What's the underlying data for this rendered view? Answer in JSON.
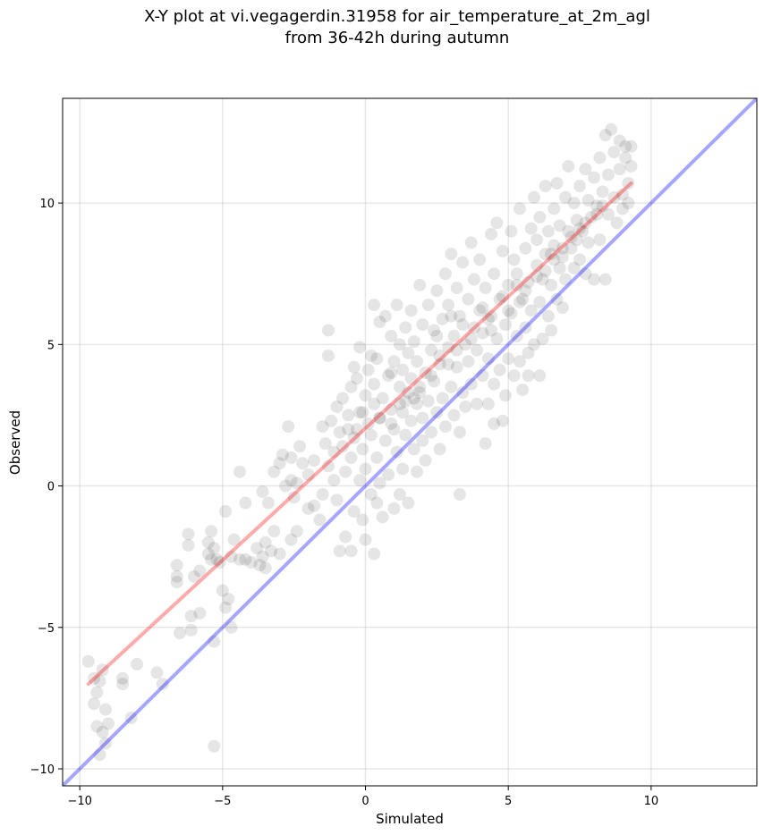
{
  "chart_data": {
    "type": "scatter",
    "title": "X-Y plot at vi.vegagerdin.31958 for air_temperature_at_2m_agl",
    "subtitle": "from 36-42h during autumn",
    "xlabel": "Simulated",
    "ylabel": "Observed",
    "xlim": [
      -10.6,
      13.7
    ],
    "ylim": [
      -10.6,
      13.7
    ],
    "x_ticks": [
      -10,
      -5,
      0,
      5,
      10
    ],
    "y_ticks": [
      -10,
      -5,
      0,
      5,
      10
    ],
    "x_tick_labels": [
      "−10",
      "−5",
      "0",
      "5",
      "10"
    ],
    "y_tick_labels": [
      "−10",
      "−5",
      "0",
      "5",
      "10"
    ],
    "grid": true,
    "point_color": "#000000",
    "point_alpha": 0.1,
    "identity_line": {
      "color": "#0000ff",
      "x": [
        -10.6,
        13.7
      ],
      "y": [
        -10.6,
        13.7
      ]
    },
    "regression_line": {
      "color": "#ff0000",
      "x": [
        -9.7,
        9.3
      ],
      "y": [
        -7.0,
        10.7
      ]
    },
    "points": [
      [
        -9.7,
        -6.2
      ],
      [
        -9.5,
        -6.8
      ],
      [
        -9.4,
        -7.3
      ],
      [
        -9.5,
        -7.7
      ],
      [
        -9.3,
        -6.9
      ],
      [
        -9.1,
        -7.9
      ],
      [
        -9.4,
        -8.5
      ],
      [
        -9.2,
        -8.7
      ],
      [
        -9.0,
        -8.4
      ],
      [
        -9.1,
        -9.1
      ],
      [
        -9.3,
        -9.5
      ],
      [
        -9.2,
        -6.5
      ],
      [
        -8.5,
        -6.8
      ],
      [
        -8.5,
        -7.0
      ],
      [
        -8.2,
        -8.2
      ],
      [
        -8.0,
        -6.3
      ],
      [
        -7.3,
        -6.6
      ],
      [
        -7.1,
        -7.0
      ],
      [
        -5.3,
        -9.2
      ],
      [
        -6.6,
        -2.8
      ],
      [
        -6.6,
        -3.2
      ],
      [
        -6.6,
        -3.4
      ],
      [
        -6.2,
        -1.7
      ],
      [
        -6.2,
        -2.1
      ],
      [
        -6.5,
        -5.2
      ],
      [
        -6.1,
        -5.1
      ],
      [
        -6.1,
        -4.6
      ],
      [
        -5.8,
        -4.5
      ],
      [
        -6.0,
        -3.2
      ],
      [
        -5.8,
        -3.0
      ],
      [
        -5.5,
        -2.0
      ],
      [
        -5.4,
        -1.6
      ],
      [
        -5.3,
        -2.2
      ],
      [
        -5.5,
        -2.4
      ],
      [
        -5.2,
        -2.6
      ],
      [
        -5.4,
        -2.6
      ],
      [
        -5.1,
        -2.7
      ],
      [
        -5.0,
        -3.7
      ],
      [
        -4.9,
        -4.3
      ],
      [
        -4.8,
        -4.0
      ],
      [
        -4.7,
        -2.5
      ],
      [
        -4.6,
        -1.9
      ],
      [
        -5.3,
        -5.5
      ],
      [
        -4.7,
        -5.0
      ],
      [
        -4.9,
        -0.9
      ],
      [
        -4.4,
        -2.6
      ],
      [
        -4.2,
        -2.6
      ],
      [
        -4.4,
        0.5
      ],
      [
        -4.2,
        -0.6
      ],
      [
        -4.0,
        -2.7
      ],
      [
        -3.8,
        -2.2
      ],
      [
        -3.7,
        -2.8
      ],
      [
        -3.6,
        -2.5
      ],
      [
        -3.5,
        -2.0
      ],
      [
        -3.5,
        -2.9
      ],
      [
        -3.3,
        -2.3
      ],
      [
        -3.2,
        -1.6
      ],
      [
        -3.0,
        -2.4
      ],
      [
        -3.6,
        -0.2
      ],
      [
        -3.4,
        -0.6
      ],
      [
        -3.2,
        0.5
      ],
      [
        -3.0,
        0.8
      ],
      [
        -2.9,
        1.1
      ],
      [
        -2.8,
        0.0
      ],
      [
        -2.6,
        0.2
      ],
      [
        -2.6,
        1.0
      ],
      [
        -2.5,
        -0.4
      ],
      [
        -2.4,
        0.1
      ],
      [
        -2.3,
        1.4
      ],
      [
        -2.2,
        0.8
      ],
      [
        -2.7,
        2.1
      ],
      [
        -2.6,
        -1.9
      ],
      [
        -2.4,
        -1.6
      ],
      [
        -2.0,
        -0.8
      ],
      [
        -1.8,
        -0.7
      ],
      [
        -2.0,
        0.4
      ],
      [
        -1.8,
        0.9
      ],
      [
        -1.6,
        -1.2
      ],
      [
        -1.5,
        -0.3
      ],
      [
        -1.5,
        2.1
      ],
      [
        -1.4,
        1.5
      ],
      [
        -1.3,
        0.7
      ],
      [
        -1.2,
        2.3
      ],
      [
        -1.1,
        1.2
      ],
      [
        -1.1,
        0.2
      ],
      [
        -1.0,
        -0.5
      ],
      [
        -1.0,
        2.8
      ],
      [
        -0.9,
        1.9
      ],
      [
        -0.9,
        -2.3
      ],
      [
        -0.8,
        3.1
      ],
      [
        -0.8,
        1.4
      ],
      [
        -0.7,
        -1.8
      ],
      [
        -0.7,
        0.5
      ],
      [
        -0.6,
        2.5
      ],
      [
        -0.5,
        -2.3
      ],
      [
        -0.5,
        3.5
      ],
      [
        -0.5,
        1.0
      ],
      [
        -0.4,
        -0.9
      ],
      [
        -0.4,
        1.7
      ],
      [
        -0.3,
        2.0
      ],
      [
        -0.3,
        3.8
      ],
      [
        -0.2,
        0.2
      ],
      [
        -0.2,
        4.9
      ],
      [
        -0.2,
        2.6
      ],
      [
        -0.1,
        -1.2
      ],
      [
        -0.1,
        1.3
      ],
      [
        0.0,
        3.2
      ],
      [
        0.0,
        -1.9
      ],
      [
        0.0,
        0.6
      ],
      [
        0.1,
        2.2
      ],
      [
        0.1,
        4.1
      ],
      [
        0.2,
        1.8
      ],
      [
        0.2,
        -0.3
      ],
      [
        0.3,
        3.6
      ],
      [
        0.3,
        6.4
      ],
      [
        0.3,
        2.9
      ],
      [
        0.4,
        1.0
      ],
      [
        0.4,
        -0.6
      ],
      [
        0.4,
        4.5
      ],
      [
        0.5,
        2.4
      ],
      [
        0.5,
        5.8
      ],
      [
        0.5,
        0.1
      ],
      [
        -1.3,
        5.5
      ],
      [
        -1.3,
        4.6
      ],
      [
        -0.4,
        4.2
      ],
      [
        0.3,
        -2.4
      ],
      [
        0.2,
        4.6
      ],
      [
        0.6,
        3.1
      ],
      [
        0.6,
        -1.1
      ],
      [
        0.7,
        1.6
      ],
      [
        0.7,
        6.0
      ],
      [
        0.8,
        3.9
      ],
      [
        0.8,
        0.4
      ],
      [
        0.9,
        2.7
      ],
      [
        0.9,
        5.3
      ],
      [
        1.0,
        -0.8
      ],
      [
        1.0,
        4.4
      ],
      [
        1.0,
        2.0
      ],
      [
        1.1,
        6.4
      ],
      [
        1.1,
        1.2
      ],
      [
        1.2,
        3.5
      ],
      [
        1.2,
        5.0
      ],
      [
        1.2,
        -0.3
      ],
      [
        1.3,
        2.6
      ],
      [
        1.3,
        4.1
      ],
      [
        1.3,
        0.6
      ],
      [
        1.4,
        5.6
      ],
      [
        1.4,
        3.0
      ],
      [
        1.4,
        1.8
      ],
      [
        1.5,
        4.7
      ],
      [
        1.5,
        -0.6
      ],
      [
        1.6,
        2.3
      ],
      [
        1.6,
        6.2
      ],
      [
        1.6,
        3.8
      ],
      [
        1.7,
        1.3
      ],
      [
        1.7,
        5.1
      ],
      [
        1.8,
        2.9
      ],
      [
        1.8,
        0.5
      ],
      [
        1.8,
        4.4
      ],
      [
        1.9,
        7.1
      ],
      [
        1.9,
        3.3
      ],
      [
        2.0,
        1.6
      ],
      [
        2.0,
        5.7
      ],
      [
        2.0,
        2.4
      ],
      [
        2.1,
        4.0
      ],
      [
        2.1,
        0.9
      ],
      [
        2.2,
        6.4
      ],
      [
        2.2,
        3.0
      ],
      [
        2.3,
        4.8
      ],
      [
        2.3,
        1.9
      ],
      [
        2.4,
        5.5
      ],
      [
        2.4,
        3.7
      ],
      [
        2.5,
        2.6
      ],
      [
        2.5,
        6.9
      ],
      [
        2.6,
        4.3
      ],
      [
        2.6,
        1.3
      ],
      [
        2.7,
        5.9
      ],
      [
        2.7,
        3.1
      ],
      [
        2.8,
        7.5
      ],
      [
        2.8,
        2.1
      ],
      [
        2.9,
        4.9
      ],
      [
        2.9,
        6.4
      ],
      [
        3.0,
        3.5
      ],
      [
        3.0,
        8.2
      ],
      [
        3.1,
        2.5
      ],
      [
        3.1,
        5.3
      ],
      [
        3.2,
        7.0
      ],
      [
        3.2,
        4.2
      ],
      [
        3.3,
        1.9
      ],
      [
        3.3,
        6.0
      ],
      [
        3.4,
        3.3
      ],
      [
        3.4,
        7.9
      ],
      [
        3.5,
        5.0
      ],
      [
        3.5,
        2.8
      ],
      [
        3.6,
        6.6
      ],
      [
        3.6,
        4.4
      ],
      [
        3.7,
        8.6
      ],
      [
        3.7,
        3.6
      ],
      [
        3.8,
        5.6
      ],
      [
        3.8,
        7.3
      ],
      [
        3.9,
        2.9
      ],
      [
        3.9,
        4.8
      ],
      [
        4.0,
        6.2
      ],
      [
        4.0,
        8.0
      ],
      [
        4.1,
        3.9
      ],
      [
        4.1,
        5.4
      ],
      [
        4.2,
        1.5
      ],
      [
        4.2,
        7.0
      ],
      [
        4.3,
        4.5
      ],
      [
        4.3,
        2.9
      ],
      [
        4.4,
        6.0
      ],
      [
        4.4,
        8.9
      ],
      [
        4.5,
        3.6
      ],
      [
        4.5,
        7.5
      ],
      [
        4.6,
        5.2
      ],
      [
        4.6,
        9.3
      ],
      [
        4.7,
        4.1
      ],
      [
        4.7,
        6.6
      ],
      [
        4.8,
        2.3
      ],
      [
        4.8,
        8.3
      ],
      [
        4.9,
        5.7
      ],
      [
        4.9,
        3.2
      ],
      [
        5.0,
        7.1
      ],
      [
        5.0,
        4.5
      ],
      [
        5.1,
        9.0
      ],
      [
        5.1,
        6.1
      ],
      [
        5.2,
        3.9
      ],
      [
        5.2,
        8.0
      ],
      [
        5.3,
        5.3
      ],
      [
        5.3,
        7.5
      ],
      [
        5.4,
        4.4
      ],
      [
        5.4,
        9.8
      ],
      [
        5.5,
        6.6
      ],
      [
        5.5,
        3.4
      ],
      [
        5.6,
        8.4
      ],
      [
        5.6,
        5.6
      ],
      [
        5.7,
        7.2
      ],
      [
        5.7,
        4.7
      ],
      [
        5.8,
        9.1
      ],
      [
        5.8,
        6.2
      ],
      [
        5.9,
        10.2
      ],
      [
        5.9,
        5.0
      ],
      [
        6.0,
        7.8
      ],
      [
        6.0,
        8.7
      ],
      [
        6.1,
        6.5
      ],
      [
        6.1,
        9.5
      ],
      [
        6.2,
        5.2
      ],
      [
        6.2,
        7.3
      ],
      [
        6.3,
        10.6
      ],
      [
        6.3,
        8.2
      ],
      [
        6.4,
        6.0
      ],
      [
        6.4,
        9.0
      ],
      [
        6.5,
        7.1
      ],
      [
        6.5,
        5.5
      ],
      [
        6.6,
        8.5
      ],
      [
        6.6,
        9.8
      ],
      [
        6.7,
        6.6
      ],
      [
        6.7,
        10.7
      ],
      [
        6.8,
        7.7
      ],
      [
        6.8,
        9.2
      ],
      [
        6.9,
        8.1
      ],
      [
        6.9,
        6.3
      ],
      [
        7.0,
        10.2
      ],
      [
        7.0,
        7.3
      ],
      [
        7.1,
        9.0
      ],
      [
        7.1,
        11.3
      ],
      [
        7.2,
        8.4
      ],
      [
        7.3,
        7.7
      ],
      [
        7.3,
        10.0
      ],
      [
        7.4,
        9.4
      ],
      [
        7.5,
        8.0
      ],
      [
        7.5,
        10.6
      ],
      [
        7.6,
        9.0
      ],
      [
        7.7,
        7.5
      ],
      [
        7.7,
        11.2
      ],
      [
        7.8,
        8.6
      ],
      [
        7.8,
        10.1
      ],
      [
        7.9,
        9.5
      ],
      [
        8.0,
        7.3
      ],
      [
        8.0,
        10.9
      ],
      [
        8.1,
        9.9
      ],
      [
        8.2,
        8.7
      ],
      [
        8.2,
        11.6
      ],
      [
        8.3,
        10.4
      ],
      [
        8.4,
        7.3
      ],
      [
        8.4,
        12.4
      ],
      [
        8.5,
        9.6
      ],
      [
        8.5,
        11.0
      ],
      [
        8.6,
        12.6
      ],
      [
        8.7,
        10.2
      ],
      [
        8.7,
        11.8
      ],
      [
        8.8,
        9.3
      ],
      [
        8.9,
        11.2
      ],
      [
        8.9,
        12.2
      ],
      [
        9.0,
        10.3
      ],
      [
        9.1,
        11.6
      ],
      [
        9.1,
        12.0
      ],
      [
        9.2,
        10.0
      ],
      [
        9.3,
        11.3
      ],
      [
        9.3,
        12.0
      ],
      [
        9.2,
        10.7
      ],
      [
        9.0,
        9.8
      ],
      [
        3.3,
        -0.3
      ],
      [
        4.5,
        2.2
      ],
      [
        5.7,
        3.9
      ],
      [
        6.1,
        3.9
      ],
      [
        0.9,
        4.0
      ],
      [
        1.5,
        3.3
      ],
      [
        3.0,
        6.0
      ],
      [
        2.5,
        5.3
      ],
      [
        3.4,
        5.7
      ],
      [
        4.1,
        6.3
      ],
      [
        4.8,
        6.7
      ],
      [
        5.3,
        7.1
      ],
      [
        6.0,
        7.4
      ],
      [
        6.6,
        8.0
      ],
      [
        7.2,
        8.8
      ],
      [
        7.7,
        9.3
      ],
      [
        1.2,
        2.9
      ],
      [
        0.5,
        2.4
      ],
      [
        1.9,
        3.5
      ],
      [
        2.3,
        3.9
      ],
      [
        2.9,
        4.3
      ],
      [
        3.7,
        5.2
      ],
      [
        4.4,
        5.5
      ],
      [
        5.0,
        6.2
      ],
      [
        5.6,
        6.9
      ],
      [
        6.3,
        7.6
      ],
      [
        6.9,
        8.4
      ],
      [
        7.5,
        9.1
      ],
      [
        8.1,
        9.6
      ],
      [
        -0.6,
        2.0
      ],
      [
        -0.1,
        2.6
      ],
      [
        0.9,
        2.2
      ],
      [
        1.7,
        3.1
      ],
      [
        2.6,
        4.6
      ],
      [
        3.2,
        4.8
      ],
      [
        4.3,
        5.9
      ],
      [
        5.4,
        6.5
      ],
      [
        6.5,
        8.2
      ],
      [
        7.4,
        8.7
      ],
      [
        8.3,
        9.9
      ]
    ]
  }
}
